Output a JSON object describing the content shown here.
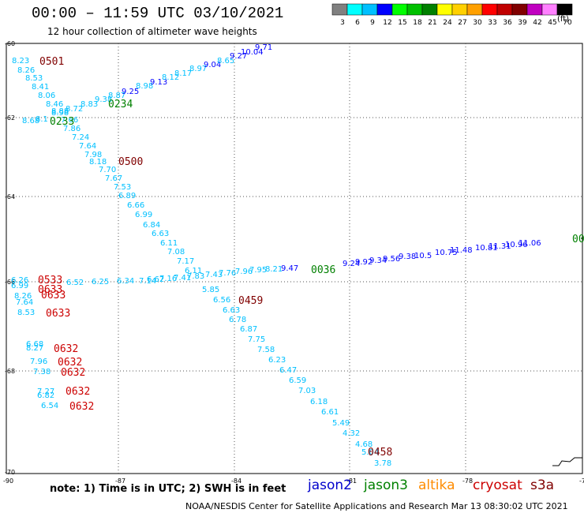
{
  "header": {
    "title": "00:00 – 11:59 UTC 03/10/2021",
    "subtitle": "12 hour collection of altimeter wave heights"
  },
  "color_scale": {
    "bins": [
      {
        "label": "3",
        "color": "#808080"
      },
      {
        "label": "6",
        "color": "#00ffff"
      },
      {
        "label": "9",
        "color": "#00c0ff"
      },
      {
        "label": "12",
        "color": "#0000ff"
      },
      {
        "label": "15",
        "color": "#00ff00"
      },
      {
        "label": "18",
        "color": "#00c000"
      },
      {
        "label": "21",
        "color": "#008000"
      },
      {
        "label": "24",
        "color": "#ffff00"
      },
      {
        "label": "27",
        "color": "#ffd000"
      },
      {
        "label": "30",
        "color": "#ffa000"
      },
      {
        "label": "33",
        "color": "#ff0000"
      },
      {
        "label": "36",
        "color": "#c00000"
      },
      {
        "label": "39",
        "color": "#800000"
      },
      {
        "label": "42",
        "color": "#c000c0"
      },
      {
        "label": "45",
        "color": "#ff80ff"
      },
      {
        "label": "70",
        "color": "#000000"
      }
    ],
    "unit": "(ft)"
  },
  "axes": {
    "lat_labels": [
      "-60",
      "-62",
      "-64",
      "-66",
      "-68",
      "-70"
    ],
    "lon_labels": [
      "-90",
      "-87",
      "-84",
      "-81",
      "-78",
      "-75"
    ]
  },
  "tracks": [
    {
      "text": [
        "8.23",
        "8.26",
        "8.53",
        "8.41",
        "8.06",
        "8.46",
        "8.88",
        "8.98",
        "8.72",
        "8.83",
        "9.38",
        "8.87",
        "9.25",
        "8.98",
        "9.13",
        "8.12",
        "8.17",
        "8.97",
        "9.04",
        "8.65",
        "9.27",
        "10.04",
        "9.71",
        "8.68",
        "8.1"
      ],
      "colors": [
        "#00c0ff",
        "#00c0ff",
        "#00c0ff",
        "#00c0ff",
        "#00c0ff",
        "#00c0ff",
        "#00c0ff",
        "#00c0ff",
        "#00c0ff",
        "#00c0ff",
        "#00c0ff",
        "#00c0ff",
        "#0000ff",
        "#00c0ff",
        "#0000ff",
        "#00c0ff",
        "#00c0ff",
        "#00c0ff",
        "#0000ff",
        "#00c0ff",
        "#0000ff",
        "#0000ff",
        "#0000ff",
        "#00c0ff",
        "#00c0ff"
      ]
    },
    {
      "text": [
        "7.66",
        "7.86",
        "7.24",
        "7.64",
        "7.98",
        "8.18",
        "7.70",
        "7.67",
        "7.53",
        "6.89",
        "6.66",
        "6.99",
        "6.84",
        "6.63",
        "6.11",
        "7.08",
        "7.17",
        "6.11",
        "5.85",
        "6.56",
        "6.63",
        "6.78",
        "6.87",
        "7.75",
        "7.58",
        "6.23",
        "6.47",
        "6.59",
        "7.03",
        "6.18",
        "6.61",
        "5.49",
        "4.32",
        "4.68",
        "5.04",
        "3.78"
      ],
      "colors": [
        "#00c0ff",
        "#00c0ff",
        "#00c0ff",
        "#00c0ff",
        "#00c0ff",
        "#00c0ff",
        "#00c0ff",
        "#00c0ff",
        "#00c0ff",
        "#00c0ff",
        "#00c0ff",
        "#00c0ff",
        "#00c0ff",
        "#00c0ff",
        "#00c0ff",
        "#00c0ff",
        "#00c0ff",
        "#00c0ff",
        "#00c0ff",
        "#00c0ff",
        "#00c0ff",
        "#00c0ff",
        "#00c0ff",
        "#00c0ff",
        "#00c0ff",
        "#00c0ff",
        "#00c0ff",
        "#00c0ff",
        "#00c0ff",
        "#00c0ff",
        "#00c0ff",
        "#00c0ff",
        "#00c0ff",
        "#00c0ff",
        "#00c0ff",
        "#00c0ff"
      ]
    },
    {
      "text": [
        "6.26",
        "6.99",
        "6.52",
        "6.25",
        "6.34",
        "7.14",
        "6.62",
        "7.16",
        "7.41",
        "7.83",
        "7.43",
        "7.76",
        "7.96",
        "7.95",
        "8.21",
        "9.47",
        "9.24",
        "9.92",
        "9.34",
        "9.56",
        "9.38",
        "10.5",
        "10.75",
        "11.48",
        "10.81",
        "11.31",
        "10.96",
        "11.06"
      ],
      "colors": [
        "#00c0ff",
        "#00c0ff",
        "#00c0ff",
        "#00c0ff",
        "#00c0ff",
        "#00c0ff",
        "#00c0ff",
        "#00c0ff",
        "#00c0ff",
        "#00c0ff",
        "#00c0ff",
        "#00c0ff",
        "#00c0ff",
        "#00c0ff",
        "#00c0ff",
        "#0000ff",
        "#0000ff",
        "#0000ff",
        "#0000ff",
        "#0000ff",
        "#0000ff",
        "#0000ff",
        "#0000ff",
        "#0000ff",
        "#0000ff",
        "#0000ff",
        "#0000ff",
        "#0000ff"
      ]
    },
    {
      "text": [
        "8.26",
        "7.64",
        "8.53"
      ],
      "colors": [
        "#00c0ff",
        "#00c0ff",
        "#00c0ff"
      ]
    },
    {
      "text": [
        "6.68",
        "8.27",
        "7.96",
        "7.38"
      ],
      "colors": [
        "#00c0ff",
        "#00c0ff",
        "#00c0ff",
        "#00c0ff"
      ]
    },
    {
      "text": [
        "7.27",
        "6.82",
        "6.54"
      ],
      "colors": [
        "#00c0ff",
        "#00c0ff",
        "#00c0ff"
      ]
    }
  ],
  "time_labels": [
    {
      "text": "0501",
      "color": "#800000"
    },
    {
      "text": "0234",
      "color": "#008000"
    },
    {
      "text": "0233",
      "color": "#008000"
    },
    {
      "text": "0500",
      "color": "#800000"
    },
    {
      "text": "0459",
      "color": "#800000"
    },
    {
      "text": "0458",
      "color": "#800000"
    },
    {
      "text": "0036",
      "color": "#008000"
    },
    {
      "text": "00",
      "color": "#008000"
    },
    {
      "text": "0533",
      "color": "#cc0000"
    },
    {
      "text": "0633",
      "color": "#cc0000"
    },
    {
      "text": "0633",
      "color": "#cc0000"
    },
    {
      "text": "0633",
      "color": "#cc0000"
    },
    {
      "text": "0632",
      "color": "#cc0000"
    },
    {
      "text": "0632",
      "color": "#cc0000"
    },
    {
      "text": "0632",
      "color": "#cc0000"
    },
    {
      "text": "0632",
      "color": "#cc0000"
    },
    {
      "text": "0632",
      "color": "#cc0000"
    }
  ],
  "footer": {
    "note": "note: 1) Time is in UTC; 2) SWH is in feet",
    "satellites": [
      {
        "name": "jason2",
        "color": "#0000cc"
      },
      {
        "name": "jason3",
        "color": "#008000"
      },
      {
        "name": "altika",
        "color": "#ff8c00"
      },
      {
        "name": "cryosat",
        "color": "#cc0000"
      },
      {
        "name": "s3a",
        "color": "#800000"
      }
    ],
    "credit": "NOAA/NESDIS Center for Satellite Applications and Research    Mar 13 08:30:02 UTC 2021"
  }
}
